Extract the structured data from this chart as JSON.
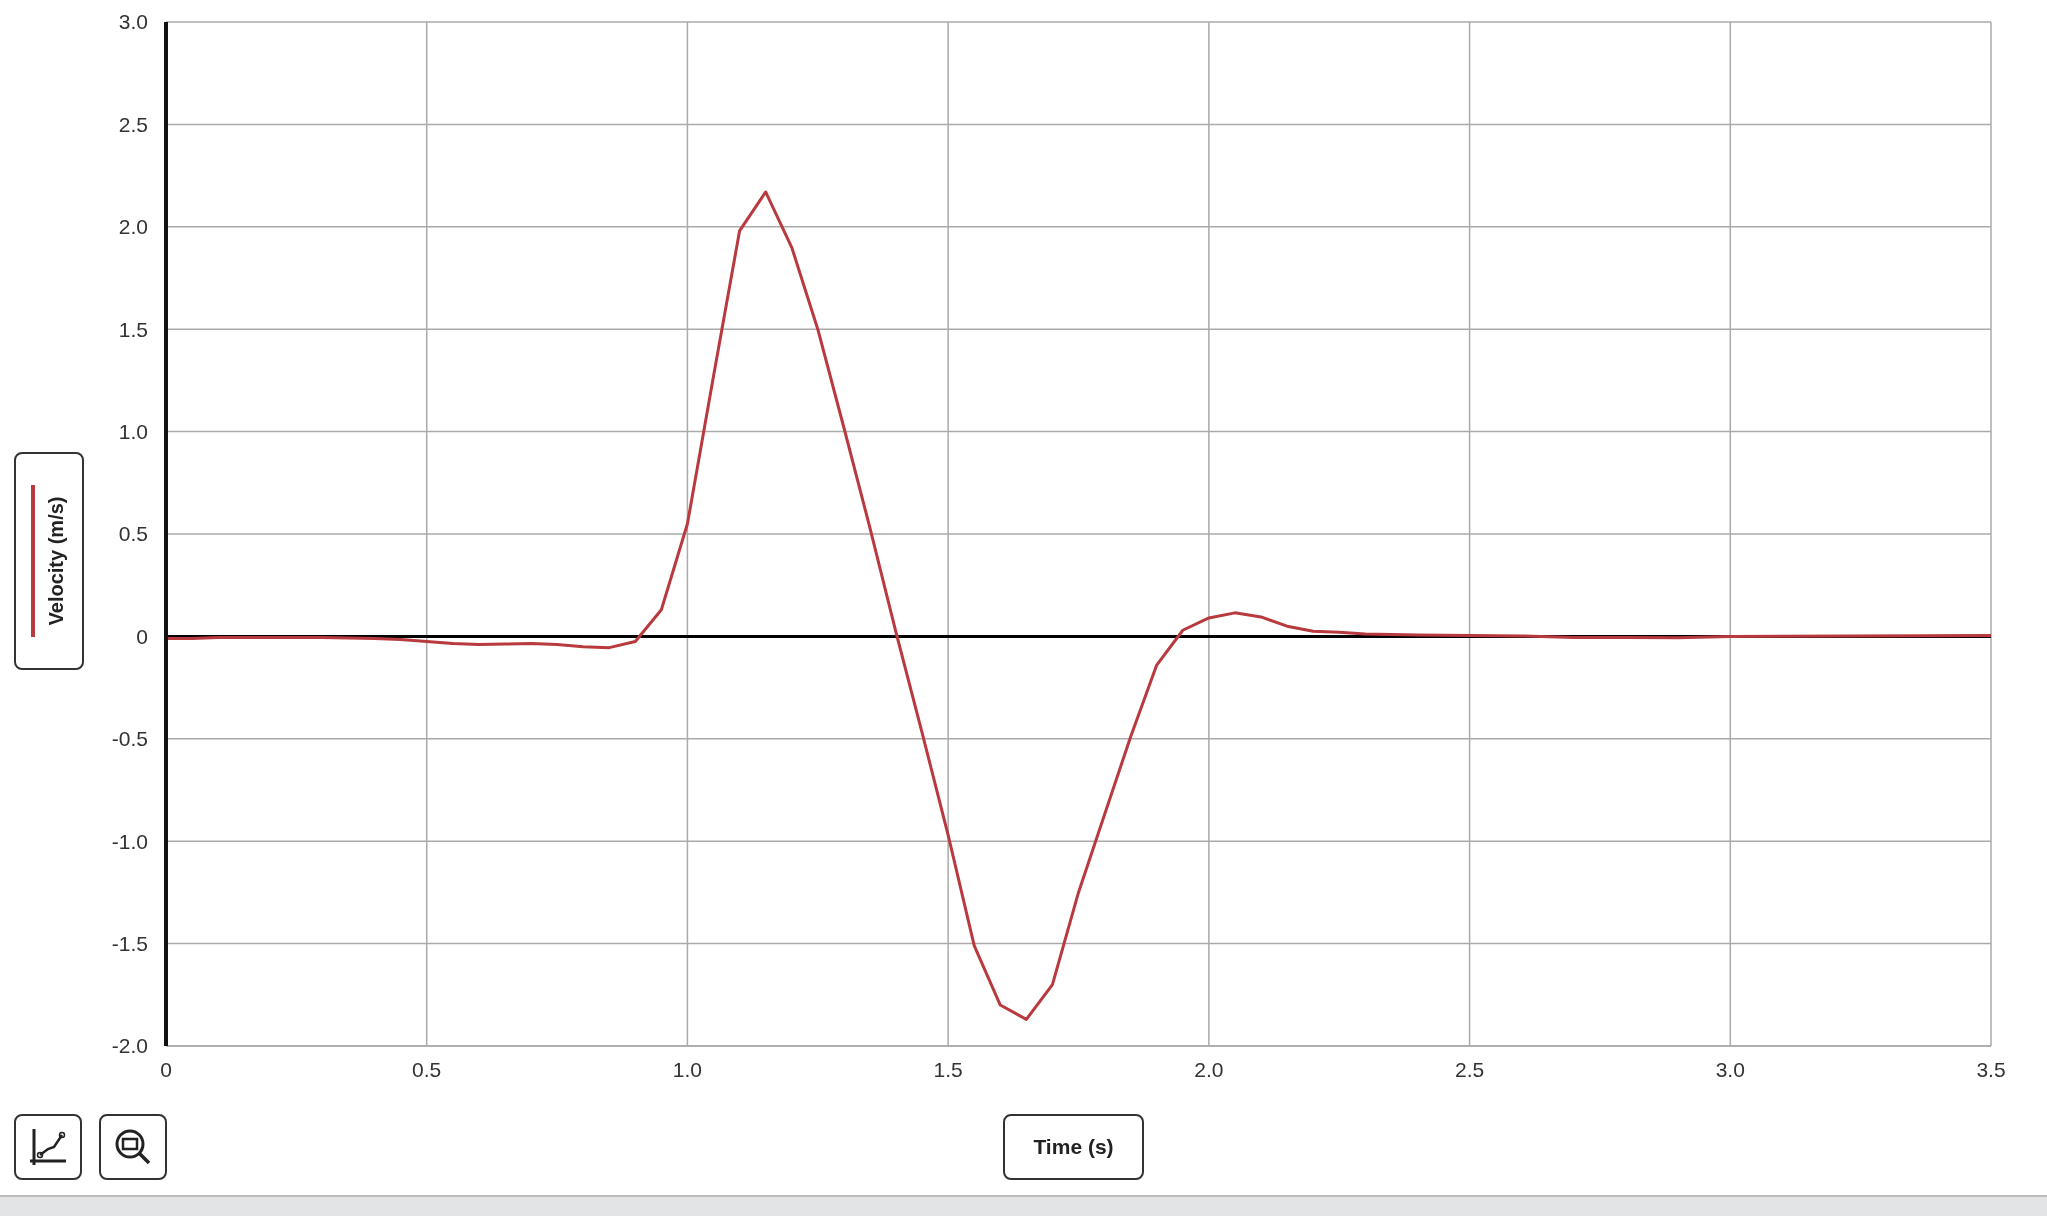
{
  "chart_data": {
    "type": "line",
    "xlabel": "Time (s)",
    "ylabel": "Velocity (m/s)",
    "xlim": [
      0,
      3.5
    ],
    "xticks": [
      0,
      0.5,
      {
        "value": 1,
        "label": "1.0"
      },
      1.5,
      {
        "value": 2,
        "label": "2.0"
      },
      2.5,
      {
        "value": 3,
        "label": "3.0"
      },
      3.5
    ],
    "ylim": [
      -2,
      3
    ],
    "yticks": [
      {
        "value": -2,
        "label": "-2.0"
      },
      -1.5,
      {
        "value": -1,
        "label": "-1.0"
      },
      -0.5,
      0,
      0.5,
      {
        "value": 1,
        "label": "1.0"
      },
      1.5,
      {
        "value": 2,
        "label": "2.0"
      },
      2.5,
      {
        "value": 3,
        "label": "3.0"
      }
    ],
    "grid": true,
    "marker": "none",
    "line_style": "solid",
    "ref_lines": [
      {
        "axis": "y",
        "value": 0,
        "color": "#000000"
      }
    ],
    "series": [
      {
        "color": "#b83a3e",
        "x": [
          0,
          0.05,
          0.1,
          0.15,
          0.2,
          0.25,
          0.3,
          0.35,
          0.4,
          0.45,
          0.5,
          0.55,
          0.6,
          0.65,
          0.7,
          0.75,
          0.8,
          0.85,
          0.9,
          0.95,
          1.0,
          1.05,
          1.1,
          1.15,
          1.2,
          1.25,
          1.3,
          1.35,
          1.4,
          1.45,
          1.5,
          1.55,
          1.6,
          1.65,
          1.7,
          1.75,
          1.8,
          1.85,
          1.9,
          1.95,
          2.0,
          2.05,
          2.1,
          2.15,
          2.2,
          2.25,
          2.3,
          2.4,
          2.5,
          2.6,
          2.7,
          2.8,
          2.9,
          3.0,
          3.5
        ],
        "values": [
          -0.01,
          -0.01,
          -0.005,
          -0.005,
          -0.005,
          -0.005,
          -0.005,
          -0.008,
          -0.01,
          -0.015,
          -0.025,
          -0.035,
          -0.04,
          -0.037,
          -0.035,
          -0.04,
          -0.05,
          -0.055,
          -0.025,
          0.13,
          0.55,
          1.27,
          1.98,
          2.17,
          1.9,
          1.5,
          1.02,
          0.53,
          0.02,
          -0.47,
          -0.97,
          -1.51,
          -1.8,
          -1.87,
          -1.7,
          -1.25,
          -0.87,
          -0.49,
          -0.14,
          0.03,
          0.09,
          0.115,
          0.095,
          0.05,
          0.025,
          0.02,
          0.012,
          0.007,
          0.005,
          0.002,
          -0.005,
          -0.005,
          -0.007,
          0,
          0.005
        ]
      }
    ]
  }
}
